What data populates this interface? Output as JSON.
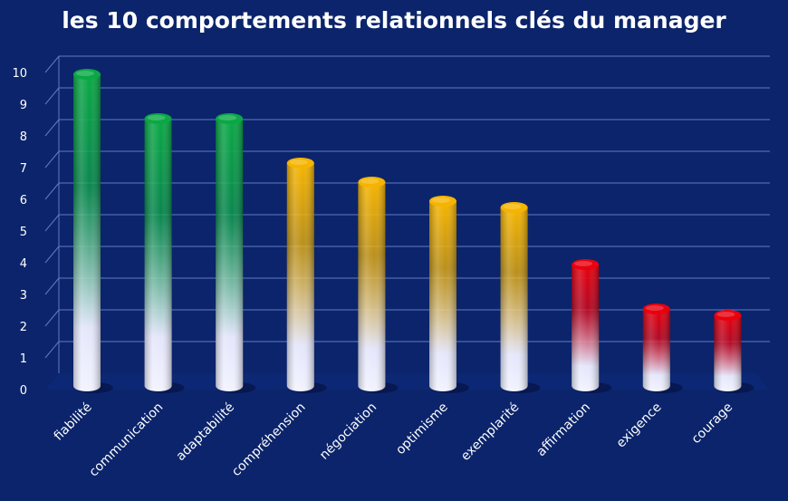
{
  "chart_data": {
    "type": "bar",
    "title": "les 10 comportements relationnels clés du manager",
    "categories": [
      "fiabilité",
      "communication",
      "adaptabilité",
      "compréhension",
      "négociation",
      "optimisme",
      "exemplarité",
      "affirmation",
      "exigence",
      "courage"
    ],
    "values": [
      10,
      8.6,
      8.6,
      7.2,
      6.6,
      6,
      5.8,
      4,
      2.6,
      2.4
    ],
    "bar_colors": [
      "#0aa845",
      "#0aa845",
      "#0aa845",
      "#f5b400",
      "#f5b400",
      "#f5b400",
      "#f5b400",
      "#e8000e",
      "#e8000e",
      "#e8000e"
    ],
    "yticks": [
      0,
      1,
      2,
      3,
      4,
      5,
      6,
      7,
      8,
      9,
      10
    ],
    "ylim": [
      0,
      10
    ],
    "grid": true,
    "background": "#0b246b"
  }
}
